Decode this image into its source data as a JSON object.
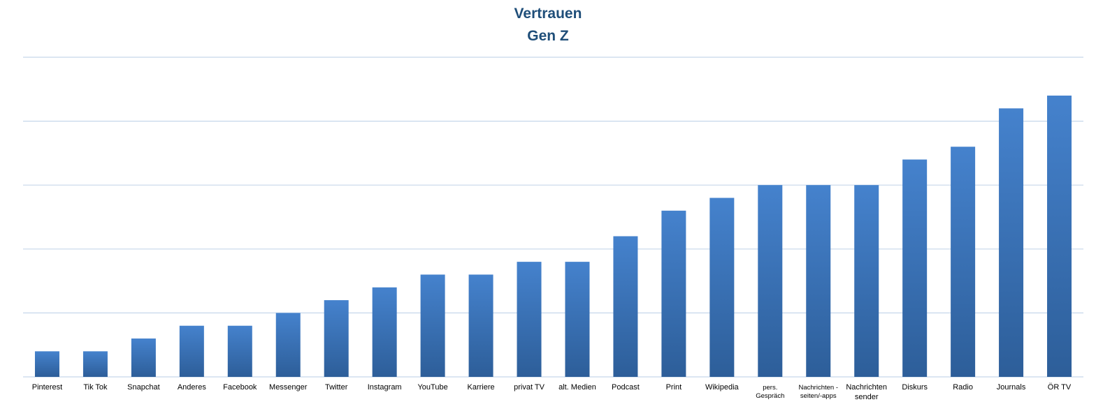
{
  "chart_data": {
    "type": "bar",
    "title": "Vertrauen",
    "subtitle": "Gen Z",
    "xlabel": "",
    "ylabel": "",
    "grid": true,
    "legend": "none",
    "ylim": [
      0,
      5
    ],
    "categories": [
      [
        "Pinterest"
      ],
      [
        "Tik Tok"
      ],
      [
        "Snapchat"
      ],
      [
        "Anderes"
      ],
      [
        "Facebook"
      ],
      [
        "Messenger"
      ],
      [
        "Twitter"
      ],
      [
        "Instagram"
      ],
      [
        "YouTube"
      ],
      [
        "Karriere"
      ],
      [
        "privat TV"
      ],
      [
        "alt. Medien"
      ],
      [
        "Podcast"
      ],
      [
        "Print"
      ],
      [
        "Wikipedia"
      ],
      [
        "pers.",
        "Gespräch"
      ],
      [
        "Nachrichten -",
        "seiten/-apps"
      ],
      [
        "Nachrichten",
        "sender"
      ],
      [
        "Diskurs"
      ],
      [
        "Radio"
      ],
      [
        "Journals"
      ],
      [
        "ÖR TV"
      ]
    ],
    "small_label_indices": [
      15,
      16
    ],
    "values": [
      0.4,
      0.4,
      0.6,
      0.8,
      0.8,
      1.0,
      1.2,
      1.4,
      1.6,
      1.6,
      1.8,
      1.8,
      2.2,
      2.6,
      2.8,
      3.0,
      3.0,
      3.0,
      3.4,
      3.6,
      4.2,
      4.4
    ],
    "colors": {
      "bar_top": "#4582cd",
      "bar_bottom": "#2d5e99",
      "grid": "#c6d7ea",
      "title": "#1f4e79"
    }
  }
}
